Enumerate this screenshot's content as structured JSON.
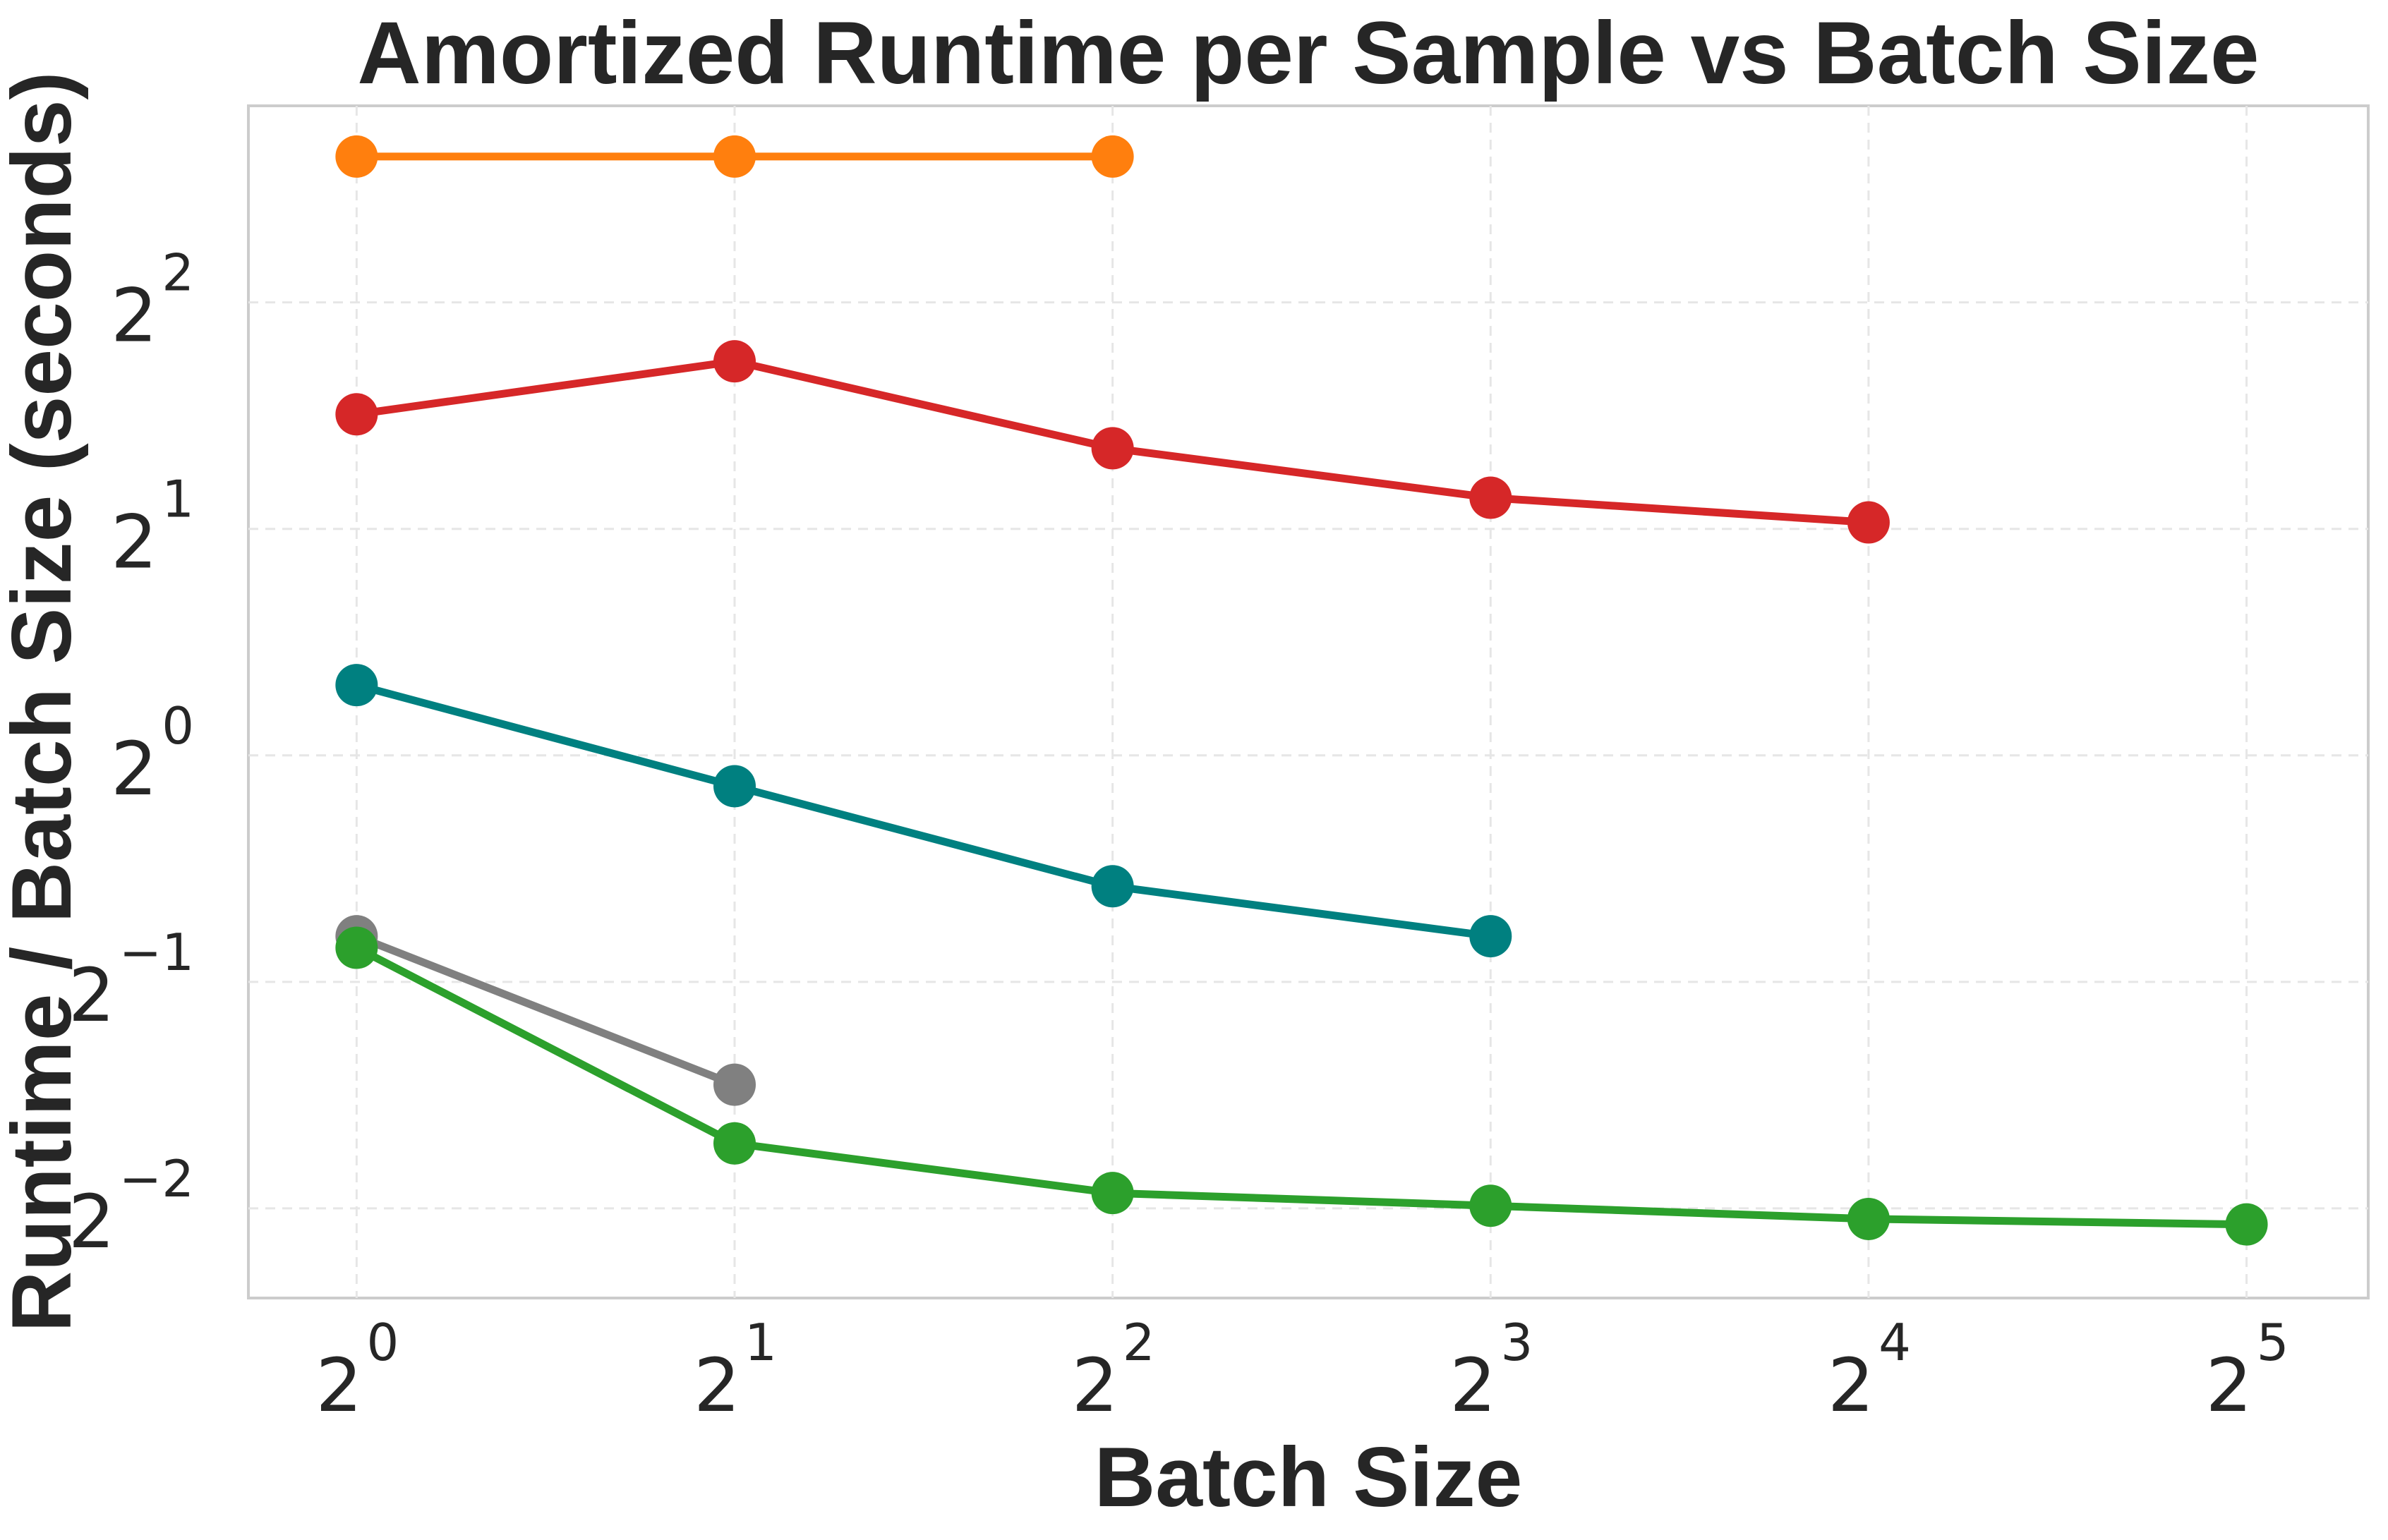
{
  "chart_data": {
    "type": "line",
    "title": "Amortized Runtime per Sample vs Batch Size",
    "xlabel": "Batch Size",
    "ylabel": "Runtime / Batch Size (seconds)",
    "x_scale": "log2",
    "y_scale": "log2",
    "xlim": [
      0.82,
      40
    ],
    "ylim": [
      0.19,
      7.3
    ],
    "grid": true,
    "x_ticks": [
      {
        "base": "2",
        "exp": "0",
        "value": 1
      },
      {
        "base": "2",
        "exp": "1",
        "value": 2
      },
      {
        "base": "2",
        "exp": "2",
        "value": 4
      },
      {
        "base": "2",
        "exp": "3",
        "value": 8
      },
      {
        "base": "2",
        "exp": "4",
        "value": 16
      },
      {
        "base": "2",
        "exp": "5",
        "value": 32
      }
    ],
    "y_ticks": [
      {
        "base": "2",
        "exp": "−2",
        "value": 0.25
      },
      {
        "base": "2",
        "exp": "−1",
        "value": 0.5
      },
      {
        "base": "2",
        "exp": "0",
        "value": 1
      },
      {
        "base": "2",
        "exp": "1",
        "value": 2
      },
      {
        "base": "2",
        "exp": "2",
        "value": 4
      }
    ],
    "series": [
      {
        "color": "#ff7f0e",
        "x": [
          1,
          2,
          4
        ],
        "y": [
          6.25,
          6.25,
          6.25
        ]
      },
      {
        "color": "#d62728",
        "x": [
          1,
          2,
          4,
          8,
          16
        ],
        "y": [
          2.84,
          3.34,
          2.56,
          2.2,
          2.04
        ]
      },
      {
        "color": "#008080",
        "x": [
          1,
          2,
          4,
          8
        ],
        "y": [
          1.24,
          0.91,
          0.67,
          0.575
        ]
      },
      {
        "color": "#808080",
        "x": [
          1,
          2
        ],
        "y": [
          0.575,
          0.365
        ]
      },
      {
        "color": "#2ca02c",
        "x": [
          1,
          2,
          4,
          8,
          16,
          32
        ],
        "y": [
          0.555,
          0.305,
          0.262,
          0.252,
          0.242,
          0.238
        ]
      }
    ]
  }
}
